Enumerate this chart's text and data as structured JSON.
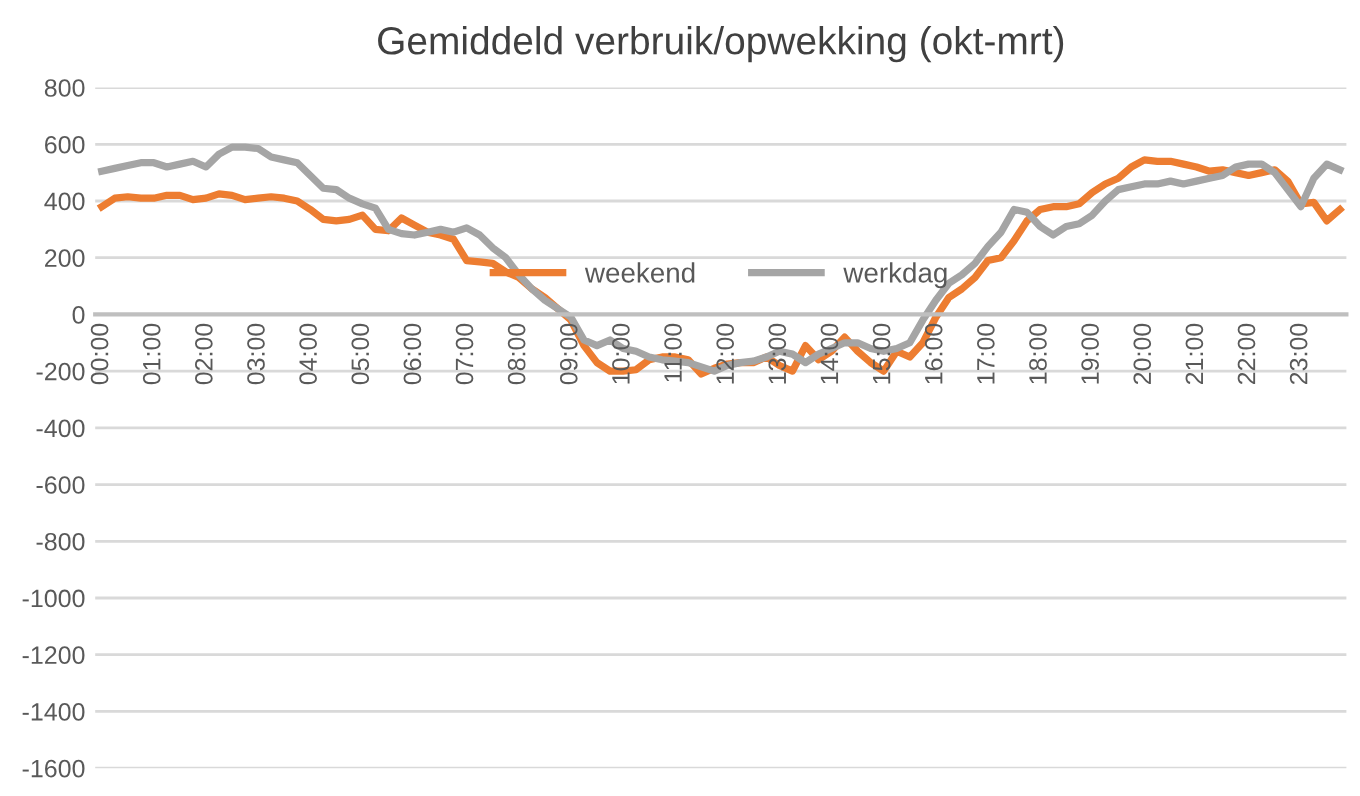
{
  "chart_data": {
    "type": "line",
    "title": "Gemiddeld verbruik/opwekking (okt-mrt)",
    "categories": [
      "00:00",
      null,
      null,
      null,
      "01:00",
      null,
      null,
      null,
      "02:00",
      null,
      null,
      null,
      "03:00",
      null,
      null,
      null,
      "04:00",
      null,
      null,
      null,
      "05:00",
      null,
      null,
      null,
      "06:00",
      null,
      null,
      null,
      "07:00",
      null,
      null,
      null,
      "08:00",
      null,
      null,
      null,
      "09:00",
      null,
      null,
      null,
      "10:00",
      null,
      null,
      null,
      "11:00",
      null,
      null,
      null,
      "12:00",
      null,
      null,
      null,
      "13:00",
      null,
      null,
      null,
      "14:00",
      null,
      null,
      null,
      "15:00",
      null,
      null,
      null,
      "16:00",
      null,
      null,
      null,
      "17:00",
      null,
      null,
      null,
      "18:00",
      null,
      null,
      null,
      "19:00",
      null,
      null,
      null,
      "20:00",
      null,
      null,
      null,
      "21:00",
      null,
      null,
      null,
      "22:00",
      null,
      null,
      null,
      "23:00",
      null,
      null,
      null
    ],
    "series": [
      {
        "name": "weekend",
        "color": "#ed7d31",
        "values": [
          380,
          410,
          415,
          410,
          410,
          420,
          420,
          405,
          410,
          425,
          420,
          405,
          410,
          415,
          410,
          400,
          370,
          335,
          330,
          335,
          350,
          300,
          295,
          340,
          315,
          290,
          280,
          265,
          190,
          185,
          180,
          150,
          130,
          90,
          60,
          20,
          -20,
          -110,
          -170,
          -200,
          -200,
          -195,
          -160,
          -150,
          -150,
          -160,
          -210,
          -190,
          -175,
          -170,
          -170,
          -150,
          -180,
          -200,
          -110,
          -160,
          -130,
          -80,
          -130,
          -170,
          -200,
          -130,
          -150,
          -100,
          -10,
          60,
          90,
          130,
          190,
          200,
          260,
          330,
          370,
          380,
          380,
          390,
          430,
          460,
          480,
          520,
          545,
          540,
          540,
          530,
          520,
          505,
          510,
          500,
          490,
          500,
          510,
          470,
          390,
          395,
          330,
          370
        ]
      },
      {
        "name": "werkdag",
        "color": "#a5a5a5",
        "values": [
          505,
          515,
          525,
          535,
          535,
          520,
          530,
          540,
          520,
          565,
          590,
          590,
          585,
          555,
          545,
          535,
          490,
          445,
          440,
          410,
          390,
          375,
          300,
          285,
          280,
          290,
          300,
          290,
          305,
          280,
          235,
          200,
          140,
          90,
          50,
          20,
          -10,
          -90,
          -110,
          -90,
          -120,
          -130,
          -150,
          -160,
          -165,
          -170,
          -185,
          -200,
          -180,
          -170,
          -165,
          -150,
          -130,
          -140,
          -170,
          -140,
          -120,
          -100,
          -100,
          -120,
          -130,
          -120,
          -100,
          -20,
          50,
          110,
          140,
          180,
          240,
          290,
          370,
          360,
          310,
          280,
          310,
          320,
          350,
          400,
          440,
          450,
          460,
          460,
          470,
          460,
          470,
          480,
          490,
          520,
          530,
          530,
          500,
          440,
          380,
          480,
          530,
          510
        ]
      }
    ],
    "ylim": [
      -1600,
      800
    ],
    "yticks": [
      -1600,
      -1400,
      -1200,
      -1000,
      -800,
      -600,
      -400,
      -200,
      0,
      200,
      400,
      600,
      800
    ],
    "grid": "y",
    "legend": "top",
    "marker": "none",
    "line_style": "solid"
  }
}
